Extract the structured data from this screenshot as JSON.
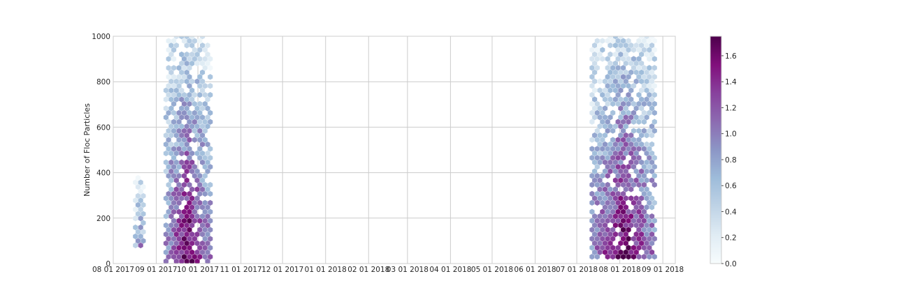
{
  "chart_data": {
    "type": "heatmap",
    "subtype": "hexbin",
    "title": "",
    "xlabel": "",
    "ylabel": "Number of Floc Particles",
    "x_is_date": true,
    "xlim": [
      "2017-08-01",
      "2018-09-10"
    ],
    "ylim": [
      0,
      1000
    ],
    "x_ticks": [
      {
        "date": "2017-08-01",
        "label": "08 01 2017"
      },
      {
        "date": "2017-09-01",
        "label": "09 01 2017"
      },
      {
        "date": "2017-10-01",
        "label": "10 01 2017"
      },
      {
        "date": "2017-11-01",
        "label": "11 01 2017"
      },
      {
        "date": "2017-12-01",
        "label": "12 01 2017"
      },
      {
        "date": "2018-01-01",
        "label": "01 01 2018"
      },
      {
        "date": "2018-02-01",
        "label": "02 01 2018"
      },
      {
        "date": "2018-03-01",
        "label": "03 01 2018"
      },
      {
        "date": "2018-04-01",
        "label": "04 01 2018"
      },
      {
        "date": "2018-05-01",
        "label": "05 01 2018"
      },
      {
        "date": "2018-06-01",
        "label": "06 01 2018"
      },
      {
        "date": "2018-07-01",
        "label": "07 01 2018"
      },
      {
        "date": "2018-08-01",
        "label": "08 01 2018"
      },
      {
        "date": "2018-09-01",
        "label": "09 01 2018"
      }
    ],
    "y_ticks": [
      {
        "value": 0,
        "label": "0"
      },
      {
        "value": 200,
        "label": "200"
      },
      {
        "value": 400,
        "label": "400"
      },
      {
        "value": 600,
        "label": "600"
      },
      {
        "value": 800,
        "label": "800"
      },
      {
        "value": 1000,
        "label": "1000"
      }
    ],
    "grid": true,
    "colormap": "BuPu",
    "color_stops": [
      "#f7fcfd",
      "#e0ecf4",
      "#bfd3e6",
      "#9ebcda",
      "#8c96c6",
      "#8c6bb1",
      "#88419d",
      "#810f7c",
      "#4d004b"
    ],
    "colorbar": {
      "range": [
        0,
        1.75
      ],
      "ticks": [
        {
          "value": 0.0,
          "label": "0.0"
        },
        {
          "value": 0.2,
          "label": "0.2"
        },
        {
          "value": 0.4,
          "label": "0.4"
        },
        {
          "value": 0.6,
          "label": "0.6"
        },
        {
          "value": 0.8,
          "label": "0.8"
        },
        {
          "value": 1.0,
          "label": "1.0"
        },
        {
          "value": 1.2,
          "label": "1.2"
        },
        {
          "value": 1.4,
          "label": "1.4"
        },
        {
          "value": 1.6,
          "label": "1.6"
        }
      ]
    },
    "clusters": [
      {
        "start": "2017-08-17",
        "end": "2017-08-23",
        "ymin": 80,
        "ymax": 390,
        "peak": 1.0
      },
      {
        "start": "2017-09-08",
        "end": "2017-10-10",
        "ymin": 10,
        "ymax": 1000,
        "peak": 1.75
      },
      {
        "start": "2018-07-12",
        "end": "2018-08-27",
        "ymin": 30,
        "ymax": 1000,
        "peak": 1.75
      }
    ]
  }
}
